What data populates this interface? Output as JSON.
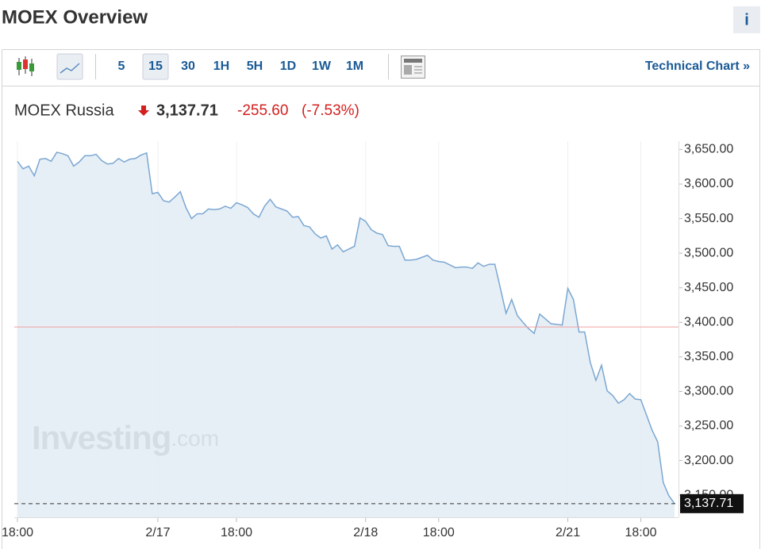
{
  "header": {
    "title": "MOEX Overview",
    "info": "i"
  },
  "toolbar": {
    "intervals": [
      "5",
      "15",
      "30",
      "1H",
      "5H",
      "1D",
      "1W",
      "1M"
    ],
    "selected": "15",
    "link": "Technical Chart »"
  },
  "quote": {
    "name": "MOEX Russia",
    "price": "3,137.71",
    "change": "-255.60",
    "change_percent": "(-7.53%)"
  },
  "watermark": {
    "brand": "Investing",
    "suffix": ".com"
  },
  "chart_data": {
    "type": "area",
    "values": [
      3633,
      3622,
      3626,
      3612,
      3636,
      3637,
      3633,
      3646,
      3644,
      3641,
      3626,
      3632,
      3641,
      3641,
      3643,
      3634,
      3629,
      3630,
      3637,
      3632,
      3636,
      3637,
      3642,
      3645,
      3586,
      3588,
      3576,
      3574,
      3581,
      3589,
      3566,
      3550,
      3557,
      3557,
      3564,
      3563,
      3564,
      3568,
      3565,
      3573,
      3570,
      3566,
      3557,
      3552,
      3568,
      3578,
      3567,
      3564,
      3561,
      3552,
      3553,
      3540,
      3538,
      3528,
      3522,
      3525,
      3506,
      3512,
      3502,
      3506,
      3510,
      3551,
      3546,
      3534,
      3529,
      3527,
      3511,
      3510,
      3510,
      3490,
      3490,
      3491,
      3494,
      3497,
      3490,
      3488,
      3487,
      3483,
      3479,
      3480,
      3480,
      3478,
      3486,
      3481,
      3484,
      3484,
      3449,
      3413,
      3433,
      3410,
      3400,
      3391,
      3384,
      3412,
      3405,
      3398,
      3397,
      3396,
      3449,
      3433,
      3386,
      3386,
      3342,
      3316,
      3338,
      3301,
      3294,
      3283,
      3288,
      3297,
      3289,
      3288,
      3266,
      3244,
      3227,
      3168,
      3149,
      3137.71
    ],
    "color": "#7aa7d2",
    "fill": "#e3ecf5",
    "xlim": [
      0,
      117
    ],
    "xticks": [
      {
        "value": 0,
        "label": "18:00"
      },
      {
        "value": 25,
        "label": "2/17"
      },
      {
        "value": 39,
        "label": "18:00"
      },
      {
        "value": 62,
        "label": "2/18"
      },
      {
        "value": 75,
        "label": "18:00"
      },
      {
        "value": 98,
        "label": "2/21"
      },
      {
        "value": 111,
        "label": "18:00"
      }
    ],
    "ylim": [
      3118,
      3662
    ],
    "yticks": [
      {
        "value": 3150,
        "label": "3,150.00"
      },
      {
        "value": 3200,
        "label": "3,200.00"
      },
      {
        "value": 3250,
        "label": "3,250.00"
      },
      {
        "value": 3300,
        "label": "3,300.00"
      },
      {
        "value": 3350,
        "label": "3,350.00"
      },
      {
        "value": 3400,
        "label": "3,400.00"
      },
      {
        "value": 3450,
        "label": "3,450.00"
      },
      {
        "value": 3500,
        "label": "3,500.00"
      },
      {
        "value": 3550,
        "label": "3,550.00"
      },
      {
        "value": 3600,
        "label": "3,600.00"
      },
      {
        "value": 3650,
        "label": "3,650.00"
      }
    ],
    "reference_line": 3393.31,
    "reference_color": "#f0a0a0",
    "last_value": 3137.71,
    "last_label": "3,137.71",
    "grid": true
  }
}
